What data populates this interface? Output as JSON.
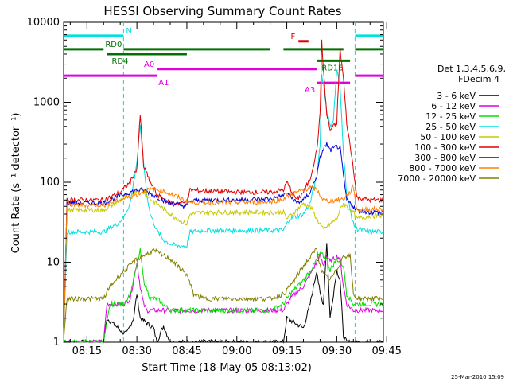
{
  "chart_data": {
    "type": "line",
    "title": "HESSI Observing Summary Count Rates",
    "xlabel": "Start Time (18-May-05 08:13:02)",
    "ylabel": "Count Rate (s⁻¹ detector⁻¹)",
    "ylog": true,
    "ylim": [
      1,
      10000
    ],
    "xlim_minutes": [
      8.0,
      104.0
    ],
    "x_tick_labels": [
      "08:15",
      "08:30",
      "08:45",
      "09:00",
      "09:15",
      "09:30",
      "09:45"
    ],
    "x_tick_minutes": [
      15,
      30,
      45,
      60,
      75,
      90,
      105
    ],
    "y_tick_labels": [
      "1",
      "10",
      "100",
      "1000",
      "10000"
    ],
    "y_tick_values": [
      1,
      10,
      100,
      1000,
      10000
    ],
    "legend": {
      "header": [
        "Det 1,3,4,5,6,9,",
        "FDecim 4"
      ],
      "placement": "right"
    },
    "series": [
      {
        "name": "3 - 6 keV",
        "color": "#000000",
        "x": [
          8,
          20,
          21,
          26,
          27,
          29,
          30,
          31,
          35,
          36,
          38,
          40,
          46,
          70,
          74,
          75,
          80,
          82,
          84,
          85,
          86,
          87,
          88,
          90,
          91,
          92,
          93,
          95,
          96,
          104
        ],
        "y": [
          1,
          1,
          2,
          1.3,
          1.3,
          2,
          4,
          2,
          1.5,
          1,
          1.6,
          1,
          1,
          1,
          1,
          2,
          1.5,
          3,
          8,
          4,
          3,
          18,
          2,
          8,
          6,
          1.2,
          1,
          1,
          1,
          1
        ]
      },
      {
        "name": "6 - 12 keV",
        "color": "#e000e0",
        "x": [
          8,
          20,
          21,
          25,
          26,
          28,
          30,
          31,
          32,
          33,
          34,
          36,
          40,
          46,
          60,
          70,
          74,
          76,
          80,
          82,
          84,
          85,
          86,
          87,
          88,
          90,
          91,
          92,
          93,
          95,
          96,
          104
        ],
        "y": [
          1,
          1,
          3,
          3,
          3,
          3.5,
          10,
          5,
          3,
          2.5,
          2.5,
          2.5,
          2.5,
          2.5,
          2.5,
          2.5,
          2.5,
          3.5,
          5,
          7,
          10,
          12,
          9,
          12,
          10,
          12,
          11,
          5,
          3,
          2.5,
          2.5,
          2.5
        ]
      },
      {
        "name": "12 - 25 keV",
        "color": "#00e000",
        "x": [
          8,
          20,
          22,
          26,
          28,
          30,
          31,
          32,
          34,
          36,
          40,
          46,
          70,
          74,
          76,
          80,
          83,
          85,
          87,
          88,
          90,
          92,
          93,
          95,
          96,
          104
        ],
        "y": [
          1,
          1,
          3,
          3,
          4,
          9,
          14,
          6,
          3.5,
          3.5,
          2.5,
          2.5,
          2.5,
          3,
          4,
          6,
          9,
          13,
          11,
          8,
          11,
          9,
          4,
          3,
          3,
          3
        ]
      },
      {
        "name": "25 - 50 keV",
        "color": "#00e0e0",
        "x": [
          8,
          9,
          20,
          22,
          24,
          26,
          28,
          30,
          31,
          32,
          33,
          34,
          36,
          38,
          40,
          42,
          45,
          46,
          50,
          60,
          70,
          74,
          75,
          76,
          80,
          82,
          84,
          85,
          85.5,
          86,
          87,
          88,
          89,
          90,
          91,
          92,
          93,
          95,
          96,
          100,
          104
        ],
        "y": [
          1,
          24,
          24,
          27,
          30,
          36,
          55,
          180,
          500,
          180,
          70,
          40,
          25,
          19,
          17,
          16,
          16,
          24,
          25,
          25,
          25,
          25,
          30,
          35,
          40,
          55,
          120,
          300,
          2200,
          1700,
          800,
          500,
          600,
          2600,
          1500,
          250,
          70,
          30,
          26,
          24,
          24
        ]
      },
      {
        "name": "50 - 100 keV",
        "color": "#c8c800",
        "x": [
          8,
          9,
          20,
          22,
          25,
          28,
          30,
          31,
          32,
          34,
          37,
          40,
          43,
          45,
          46,
          50,
          60,
          70,
          74,
          75,
          78,
          80,
          82,
          84,
          85,
          86,
          87,
          88,
          90,
          91,
          92,
          93,
          95,
          96,
          100,
          104
        ],
        "y": [
          1,
          45,
          45,
          50,
          60,
          70,
          80,
          80,
          75,
          62,
          50,
          40,
          33,
          30,
          40,
          42,
          42,
          42,
          42,
          35,
          45,
          55,
          50,
          35,
          30,
          25,
          28,
          30,
          35,
          45,
          55,
          50,
          42,
          35,
          38,
          38
        ]
      },
      {
        "name": "100 - 300 keV",
        "color": "#e00000",
        "x": [
          8,
          9,
          20,
          22,
          25,
          28,
          30,
          31,
          32,
          34,
          36,
          40,
          45,
          46,
          50,
          60,
          70,
          74,
          75,
          78,
          80,
          82,
          84,
          85,
          85.5,
          86,
          87,
          88,
          90,
          91,
          92,
          93,
          95,
          96,
          100,
          104
        ],
        "y": [
          1,
          60,
          60,
          65,
          75,
          100,
          150,
          700,
          160,
          100,
          70,
          55,
          55,
          80,
          78,
          75,
          75,
          80,
          100,
          60,
          75,
          110,
          250,
          700,
          6000,
          2500,
          700,
          450,
          550,
          4600,
          2000,
          550,
          150,
          65,
          60,
          60
        ]
      },
      {
        "name": "300 - 800 keV",
        "color": "#0000e0",
        "x": [
          8,
          9,
          20,
          22,
          25,
          28,
          30,
          31,
          32,
          34,
          37,
          40,
          45,
          46,
          50,
          60,
          70,
          74,
          75,
          78,
          80,
          82,
          84,
          85,
          86,
          87,
          88,
          90,
          91,
          92,
          93,
          95,
          96,
          100,
          104
        ],
        "y": [
          1,
          55,
          55,
          60,
          68,
          75,
          80,
          80,
          80,
          73,
          62,
          55,
          50,
          58,
          60,
          60,
          62,
          68,
          75,
          55,
          60,
          75,
          120,
          200,
          260,
          300,
          250,
          280,
          270,
          120,
          60,
          50,
          45,
          42,
          42
        ]
      },
      {
        "name": "800 - 7000 keV",
        "color": "#ff8000",
        "x": [
          8,
          9,
          20,
          25,
          30,
          33,
          36,
          40,
          45,
          46,
          50,
          60,
          70,
          74,
          76,
          80,
          82,
          84,
          86,
          88,
          90,
          92,
          94,
          95,
          96,
          100,
          104
        ],
        "y": [
          1,
          52,
          52,
          60,
          70,
          80,
          82,
          72,
          58,
          56,
          56,
          56,
          57,
          62,
          70,
          80,
          86,
          80,
          60,
          58,
          60,
          62,
          75,
          90,
          45,
          46,
          46
        ]
      },
      {
        "name": "7000 - 20000 keV",
        "color": "#808000",
        "x": [
          8,
          9,
          20,
          22,
          25,
          30,
          35,
          40,
          45,
          47,
          50,
          60,
          70,
          74,
          76,
          80,
          83,
          84,
          85,
          86,
          88,
          90,
          92,
          94,
          95,
          96,
          104
        ],
        "y": [
          1,
          3.5,
          3.5,
          5,
          7,
          11,
          14,
          11,
          7,
          4,
          3.5,
          3.5,
          3.5,
          4,
          5,
          9,
          13,
          15,
          9,
          7,
          6,
          8,
          12,
          12,
          4,
          3.5,
          3.5
        ]
      }
    ],
    "annotations": [
      {
        "label": "N",
        "color": "#00e0e0",
        "segments": [
          [
            8,
            26
          ],
          [
            95.5,
            104
          ]
        ],
        "level": 6800
      },
      {
        "label": "RD0",
        "color": "#007000",
        "segments": [
          [
            8,
            20
          ],
          [
            26,
            70
          ],
          [
            74,
            92
          ],
          [
            95.5,
            104
          ]
        ],
        "level": 4600
      },
      {
        "label": "RD4",
        "color": "#007000",
        "segments": [
          [
            21,
            45
          ]
        ],
        "level": 4000
      },
      {
        "label": "F",
        "color": "#e00000",
        "segments": [
          [
            78.5,
            81.5
          ]
        ],
        "level": 5800
      },
      {
        "label": "RD16",
        "color": "#007000",
        "segments": [
          [
            84,
            94
          ]
        ],
        "level": 3300
      },
      {
        "label": "A0",
        "color": "#e000e0",
        "segments": [
          [
            36,
            84
          ]
        ],
        "level": 2600
      },
      {
        "label": "A1",
        "color": "#e000e0",
        "segments": [
          [
            8,
            36
          ],
          [
            95.5,
            104
          ]
        ],
        "level": 2150
      },
      {
        "label": "A3",
        "color": "#e000e0",
        "segments": [
          [
            84,
            94
          ]
        ],
        "level": 1750
      }
    ],
    "vertical_markers_minutes": [
      26,
      95.5
    ],
    "grid": false
  },
  "footer": {
    "timestamp": "25-Mar-2010 15:09"
  }
}
